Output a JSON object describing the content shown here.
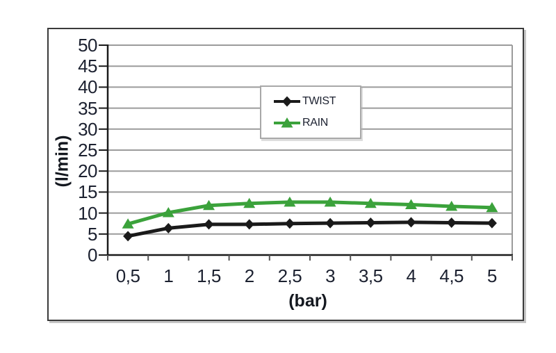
{
  "chart_data": {
    "type": "line",
    "title": "",
    "xlabel": "(bar)",
    "ylabel": "(l/min)",
    "x": [
      0.5,
      1,
      1.5,
      2,
      2.5,
      3,
      3.5,
      4,
      4.5,
      5
    ],
    "x_tick_labels": [
      "0,5",
      "1",
      "1,5",
      "2",
      "2,5",
      "3",
      "3,5",
      "4",
      "4,5",
      "5"
    ],
    "ylim": [
      0,
      50
    ],
    "ytick_step": 5,
    "grid": "horizontal",
    "grid_color": "#9b9b9b",
    "axis_color": "#1a1a1a",
    "legend_position": "upper-center-inside",
    "series": [
      {
        "name": "TWIST",
        "color": "#1a1a1a",
        "marker": "diamond",
        "values": [
          4.5,
          6.4,
          7.3,
          7.3,
          7.5,
          7.6,
          7.7,
          7.8,
          7.7,
          7.6
        ]
      },
      {
        "name": "RAIN",
        "color": "#3ba23b",
        "marker": "triangle",
        "values": [
          7.4,
          10.1,
          11.8,
          12.3,
          12.6,
          12.6,
          12.3,
          12.0,
          11.6,
          11.3
        ]
      }
    ]
  }
}
